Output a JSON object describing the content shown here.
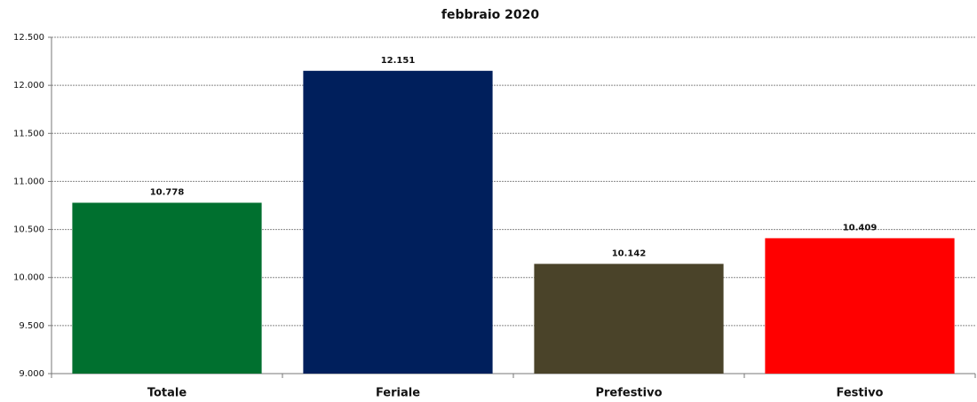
{
  "chart_data": {
    "type": "bar",
    "title": "febbraio 2020",
    "categories": [
      "Totale",
      "Feriale",
      "Prefestivo",
      "Festivo"
    ],
    "values": [
      10778,
      12151,
      10142,
      10409
    ],
    "value_labels": [
      "10.778",
      "12.151",
      "10.142",
      "10.409"
    ],
    "colors": [
      "#00702f",
      "#001f5c",
      "#4a4329",
      "#ff0000"
    ],
    "ylim": [
      9000,
      12500
    ],
    "yticks": [
      {
        "value": 9000,
        "label": "9.000"
      },
      {
        "value": 9500,
        "label": "9.500"
      },
      {
        "value": 10000,
        "label": "10.000"
      },
      {
        "value": 10500,
        "label": "10.500"
      },
      {
        "value": 11000,
        "label": "11.000"
      },
      {
        "value": 11500,
        "label": "11.500"
      },
      {
        "value": 12000,
        "label": "12.000"
      },
      {
        "value": 12500,
        "label": "12.500"
      }
    ],
    "grid": true
  }
}
